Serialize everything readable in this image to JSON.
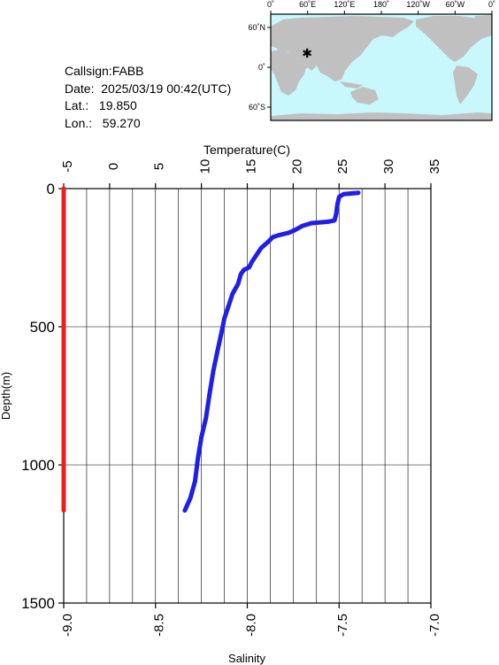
{
  "info": {
    "callsign": "Callsign:FABB",
    "date": "Date:  2025/03/19 00:42(UTC)",
    "lat": "Lat.:   19.850",
    "lon": "Lon.:   59.270"
  },
  "map": {
    "top_ticks": [
      "0˚",
      "60˚E",
      "120˚E",
      "180˚",
      "120˚W",
      "60˚W",
      "0˚"
    ],
    "lat_ticks": [
      "60˚N",
      "0˚",
      "60˚S"
    ],
    "ocean_color": "#c8f8fc",
    "land_color": "#c0c0c0",
    "marker_color": "#e02020",
    "marker": {
      "lon": 59.27,
      "lat": 19.85
    }
  },
  "chart_data": {
    "type": "line",
    "title": "",
    "top_axis": {
      "label": "Temperature(C)",
      "range": [
        -5,
        35
      ],
      "ticks": [
        -5,
        0,
        5,
        10,
        15,
        20,
        25,
        30,
        35
      ]
    },
    "bottom_axis": {
      "label": "Salinity",
      "range": [
        -9.0,
        -7.0
      ],
      "ticks": [
        "-9.0",
        "-8.5",
        "-8.0",
        "-7.5",
        "-7.0"
      ]
    },
    "y_axis": {
      "label": "Depth(m)",
      "range": [
        0,
        1500
      ],
      "inverted": true,
      "ticks": [
        0,
        500,
        1000,
        1500
      ]
    },
    "grid": true,
    "series": [
      {
        "color": "#1f1fe6",
        "axis": "temperature",
        "points": [
          [
            27.1,
            15
          ],
          [
            25.5,
            20
          ],
          [
            25.0,
            30
          ],
          [
            24.8,
            60
          ],
          [
            24.7,
            90
          ],
          [
            24.5,
            115
          ],
          [
            23.8,
            120
          ],
          [
            22.0,
            125
          ],
          [
            21.0,
            135
          ],
          [
            20.2,
            150
          ],
          [
            19.5,
            160
          ],
          [
            18.5,
            168
          ],
          [
            17.8,
            175
          ],
          [
            17.2,
            195
          ],
          [
            16.5,
            215
          ],
          [
            16.0,
            240
          ],
          [
            15.5,
            265
          ],
          [
            15.2,
            285
          ],
          [
            14.6,
            295
          ],
          [
            14.3,
            310
          ],
          [
            14.0,
            345
          ],
          [
            13.4,
            380
          ],
          [
            13.0,
            420
          ],
          [
            12.5,
            470
          ],
          [
            12.2,
            520
          ],
          [
            11.8,
            580
          ],
          [
            11.3,
            660
          ],
          [
            10.9,
            740
          ],
          [
            10.5,
            830
          ],
          [
            10.0,
            900
          ],
          [
            9.6,
            980
          ],
          [
            9.3,
            1060
          ],
          [
            8.8,
            1120
          ],
          [
            8.2,
            1165
          ]
        ]
      },
      {
        "color": "#e82020",
        "axis": "salinity",
        "points": [
          [
            -9.0,
            0
          ],
          [
            -9.0,
            1165
          ]
        ]
      }
    ]
  }
}
